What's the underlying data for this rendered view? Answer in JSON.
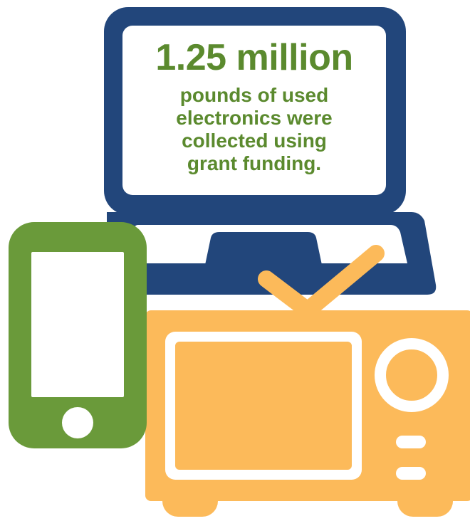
{
  "headline": "1.25 million",
  "caption_lines": [
    "pounds of used",
    "electronics were",
    "collected using",
    "grant funding."
  ],
  "colors": {
    "laptop_blue": "#22467b",
    "text_green": "#5b8a2e",
    "phone_green": "#6a9a3a",
    "tv_orange": "#fcba5a",
    "screen_white": "#ffffff"
  },
  "icons": {
    "laptop": "laptop-icon",
    "phone": "smartphone-icon",
    "tv": "television-icon"
  }
}
